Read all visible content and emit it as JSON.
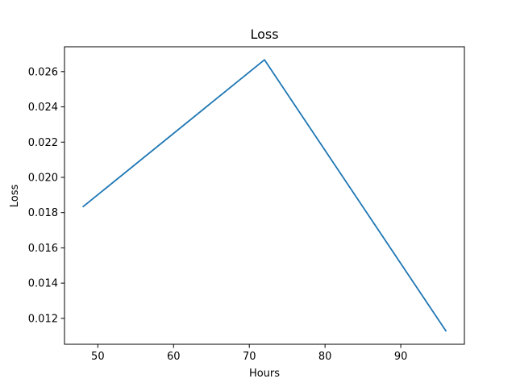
{
  "chart_data": {
    "type": "line",
    "title": "Loss",
    "xlabel": "Hours",
    "ylabel": "Loss",
    "xlim": [
      45.6,
      98.4
    ],
    "ylim": [
      0.01053,
      0.02741
    ],
    "x_ticks": [
      50,
      60,
      70,
      80,
      90
    ],
    "x_tick_labels": [
      "50",
      "60",
      "70",
      "80",
      "90"
    ],
    "y_ticks": [
      0.012,
      0.014,
      0.016,
      0.018,
      0.02,
      0.022,
      0.024,
      0.026
    ],
    "y_tick_labels": [
      "0.012",
      "0.014",
      "0.016",
      "0.018",
      "0.020",
      "0.022",
      "0.024",
      "0.026"
    ],
    "grid": false,
    "series": [
      {
        "x": [
          48,
          72,
          96
        ],
        "y": [
          0.01832,
          0.02667,
          0.01126
        ],
        "color": "#1f77b4"
      }
    ]
  }
}
